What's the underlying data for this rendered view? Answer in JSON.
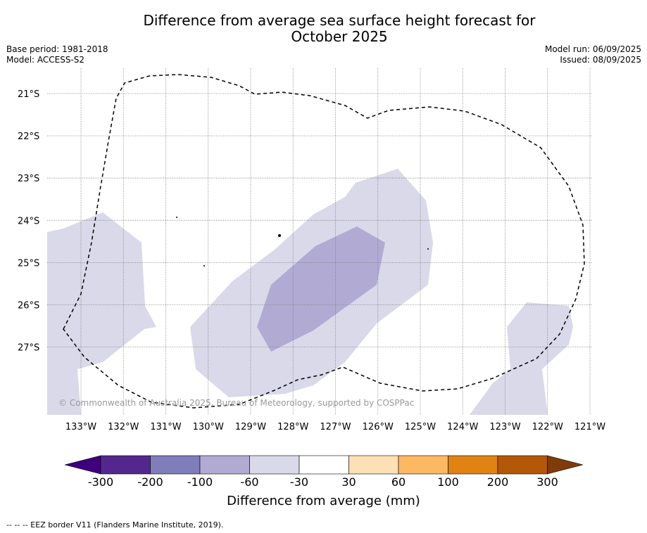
{
  "header": {
    "title_line1": "Difference from average sea surface height forecast for",
    "title_line2": "October 2025",
    "base_period": "Base period: 1981-2018",
    "model": "Model: ACCESS-S2",
    "model_run": "Model run: 06/09/2025",
    "issued": "Issued: 08/09/2025"
  },
  "map": {
    "copyright": "© Commonwealth of Australia 2025, Bureau of Meteorology, supported by COSPPac",
    "lon_ticks": [
      "133°W",
      "132°W",
      "131°W",
      "130°W",
      "129°W",
      "128°W",
      "127°W",
      "126°W",
      "125°W",
      "124°W",
      "123°W",
      "122°W",
      "121°W"
    ],
    "lat_ticks": [
      "21°S",
      "22°S",
      "23°S",
      "24°S",
      "25°S",
      "26°S",
      "27°S"
    ],
    "shading": {
      "-60_to_-30": "#d9d9ea",
      "-100_to_-60": "#b1abd3"
    }
  },
  "colorbar": {
    "title": "Difference from average (mm)",
    "labels": [
      "-300",
      "-200",
      "-100",
      "-60",
      "-30",
      "30",
      "60",
      "100",
      "200",
      "300"
    ],
    "colors": [
      "#3f007d",
      "#54278f",
      "#807dba",
      "#b1abd3",
      "#d9d9ea",
      "#ffffff",
      "#fee0b6",
      "#fdb863",
      "#e08214",
      "#b35806",
      "#7f3b08"
    ]
  },
  "footer": {
    "legend_note": "--  --  -- EEZ border V11 (Flanders Marine Institute, 2019)."
  }
}
